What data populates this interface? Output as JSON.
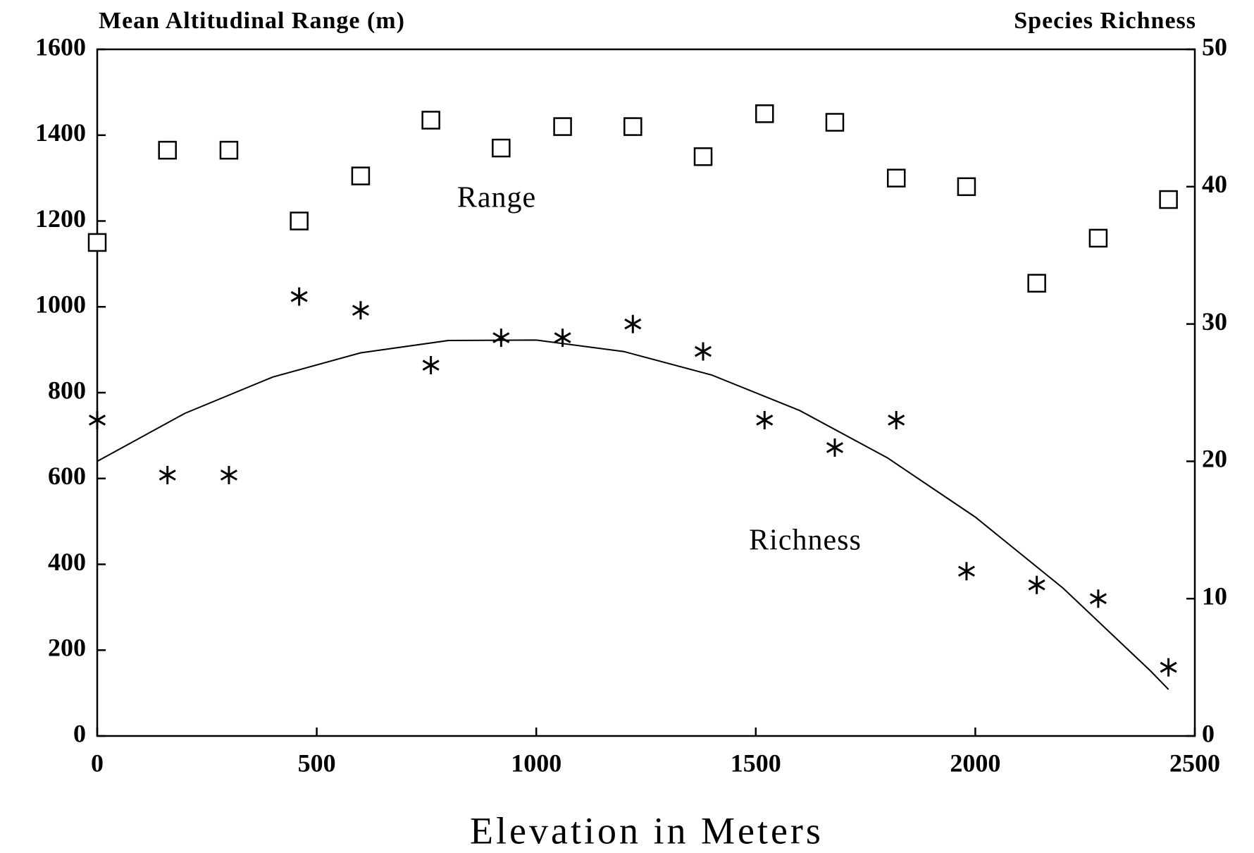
{
  "chart_data": {
    "type": "scatter",
    "y_axis_label": "Mean Altitudinal Range (m)",
    "y2_axis_label": "Species Richness",
    "x_axis_label": "Elevation in Meters",
    "annotations": [
      "Range",
      "Richness"
    ],
    "xlim": [
      0,
      2500
    ],
    "xticks": [
      0,
      500,
      1000,
      1500,
      2000,
      2500
    ],
    "ylim": [
      0,
      1600
    ],
    "yticks": [
      0,
      200,
      400,
      600,
      800,
      1000,
      1200,
      1400,
      1600
    ],
    "y2lim": [
      0,
      50
    ],
    "y2ticks": [
      0,
      10,
      20,
      30,
      40,
      50
    ],
    "series": [
      {
        "name": "Range",
        "color": "#000000",
        "marker": "square",
        "axis": "y",
        "x": [
          0,
          160,
          300,
          460,
          600,
          760,
          920,
          1060,
          1220,
          1380,
          1520,
          1680,
          1820,
          1980,
          2140,
          2280,
          2440
        ],
        "values": [
          1150,
          1365,
          1365,
          1200,
          1305,
          1435,
          1370,
          1420,
          1420,
          1350,
          1450,
          1430,
          1300,
          1280,
          1055,
          1160,
          1250
        ]
      },
      {
        "name": "Richness",
        "color": "#000000",
        "marker": "asterisk",
        "axis": "y2",
        "x": [
          0,
          160,
          300,
          460,
          600,
          760,
          920,
          1060,
          1220,
          1380,
          1520,
          1680,
          1820,
          1980,
          2140,
          2280,
          2440
        ],
        "values": [
          23,
          19,
          19,
          32,
          31,
          27,
          29,
          29,
          30,
          28,
          23,
          21,
          23,
          12,
          11,
          10,
          5
        ]
      }
    ],
    "curve": {
      "axis": "y2",
      "color": "#000000",
      "x": [
        0,
        200,
        400,
        600,
        800,
        1000,
        1200,
        1400,
        1600,
        1800,
        2000,
        2200,
        2400,
        2440
      ],
      "values": [
        20,
        23.5,
        26.14,
        27.9,
        28.8,
        28.83,
        27.99,
        26.28,
        23.7,
        20.25,
        15.94,
        10.76,
        4.71,
        3.39
      ]
    }
  }
}
